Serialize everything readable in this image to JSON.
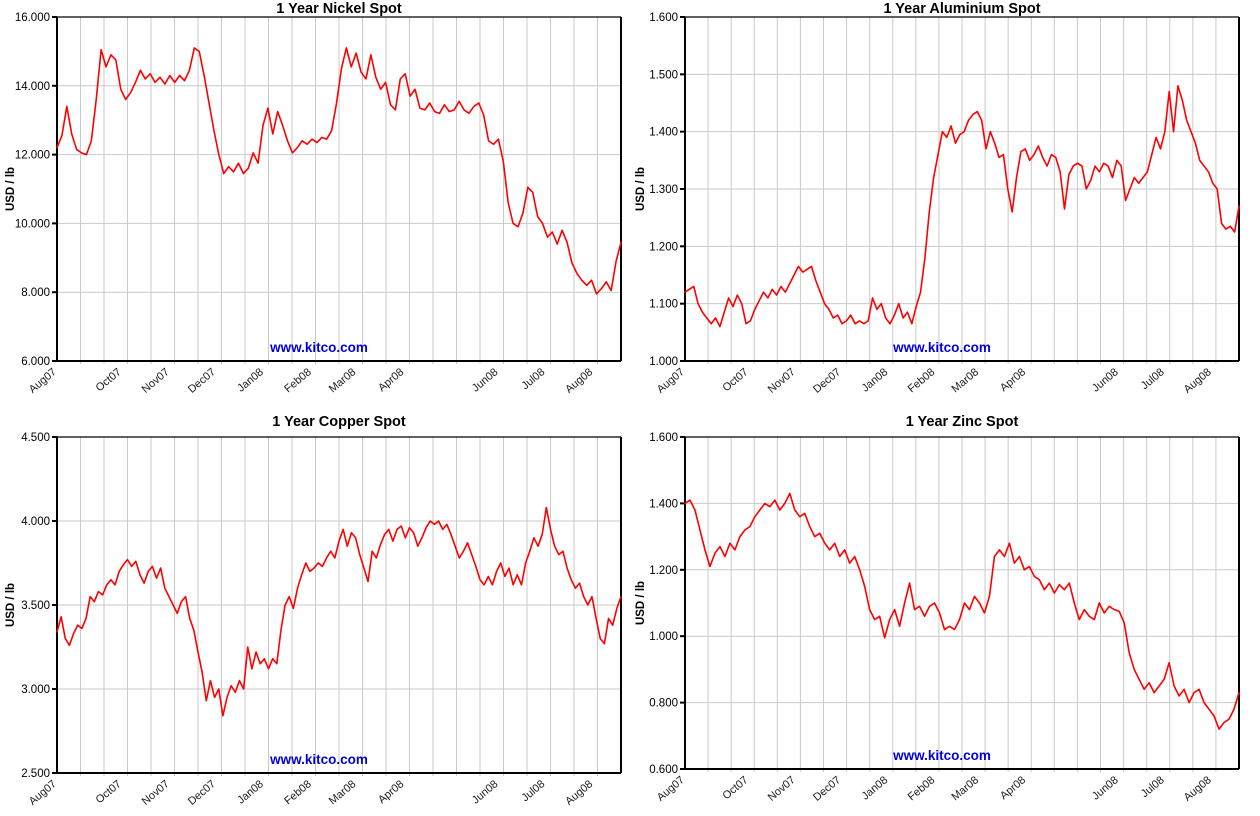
{
  "page": {
    "background": "#ffffff"
  },
  "watermark": {
    "text": "www.kitco.com",
    "color": "#0000dd"
  },
  "chart_data": [
    {
      "id": "nickel",
      "type": "line",
      "title": "1 Year Nickel Spot",
      "ylabel": "USD / lb",
      "grid": true,
      "legend_position": "none",
      "line_color": "#ff0000",
      "ylim": [
        6,
        16
      ],
      "y_tick_labels": [
        "16.000",
        "14.000",
        "12.000",
        "10.000",
        "8.000",
        "6.000"
      ],
      "x_tick_labels": [
        "Aug07",
        "Oct07",
        "Nov07",
        "Dec07",
        "Jan08",
        "Feb08",
        "Mar08",
        "Apr08",
        "Jun08",
        "Jul08",
        "Aug08"
      ],
      "x_tick_positions": [
        0.0,
        0.115,
        0.2,
        0.282,
        0.367,
        0.452,
        0.531,
        0.616,
        0.783,
        0.866,
        0.951
      ],
      "x_range_note": "Aug 2007 to Aug 2008",
      "watermark": "www.kitco.com",
      "series": [
        {
          "name": "Nickel spot price (USD/lb)",
          "values": [
            12.2,
            12.55,
            13.4,
            12.6,
            12.15,
            12.05,
            12.0,
            12.4,
            13.6,
            15.05,
            14.55,
            14.9,
            14.75,
            13.9,
            13.6,
            13.8,
            14.1,
            14.45,
            14.2,
            14.35,
            14.1,
            14.25,
            14.05,
            14.3,
            14.1,
            14.3,
            14.15,
            14.45,
            15.1,
            15.0,
            14.3,
            13.5,
            12.7,
            12.0,
            11.45,
            11.65,
            11.5,
            11.75,
            11.45,
            11.6,
            12.05,
            11.75,
            12.85,
            13.35,
            12.6,
            13.25,
            12.85,
            12.4,
            12.05,
            12.2,
            12.4,
            12.3,
            12.45,
            12.35,
            12.5,
            12.45,
            12.7,
            13.5,
            14.5,
            15.1,
            14.55,
            14.95,
            14.4,
            14.2,
            14.9,
            14.25,
            13.9,
            14.1,
            13.45,
            13.3,
            14.2,
            14.35,
            13.7,
            13.9,
            13.35,
            13.3,
            13.5,
            13.25,
            13.2,
            13.45,
            13.25,
            13.3,
            13.55,
            13.3,
            13.2,
            13.4,
            13.5,
            13.15,
            12.4,
            12.3,
            12.45,
            11.8,
            10.6,
            10.0,
            9.9,
            10.3,
            11.05,
            10.9,
            10.2,
            10.0,
            9.6,
            9.75,
            9.4,
            9.8,
            9.45,
            8.85,
            8.55,
            8.35,
            8.2,
            8.35,
            7.95,
            8.1,
            8.3,
            8.05,
            8.9,
            9.45
          ]
        }
      ]
    },
    {
      "id": "aluminium",
      "type": "line",
      "title": "1 Year Aluminium Spot",
      "ylabel": "USD / lb",
      "grid": true,
      "legend_position": "none",
      "line_color": "#ff0000",
      "ylim": [
        1.0,
        1.6
      ],
      "y_tick_labels": [
        "1.600",
        "1.500",
        "1.400",
        "1.300",
        "1.200",
        "1.100",
        "1.000"
      ],
      "x_tick_labels": [
        "Aug07",
        "Oct07",
        "Nov07",
        "Dec07",
        "Jan08",
        "Feb08",
        "Mar08",
        "Apr08",
        "Jun08",
        "Jul08",
        "Aug08"
      ],
      "x_tick_positions": [
        0.0,
        0.115,
        0.2,
        0.282,
        0.367,
        0.452,
        0.531,
        0.616,
        0.783,
        0.866,
        0.951
      ],
      "x_range_note": "Aug 2007 to Aug 2008",
      "watermark": "www.kitco.com",
      "series": [
        {
          "name": "Aluminium spot price (USD/lb)",
          "values": [
            1.12,
            1.125,
            1.13,
            1.1,
            1.085,
            1.075,
            1.065,
            1.075,
            1.06,
            1.085,
            1.11,
            1.095,
            1.115,
            1.1,
            1.065,
            1.07,
            1.09,
            1.105,
            1.12,
            1.11,
            1.125,
            1.115,
            1.13,
            1.12,
            1.135,
            1.15,
            1.165,
            1.155,
            1.16,
            1.165,
            1.14,
            1.12,
            1.1,
            1.09,
            1.075,
            1.08,
            1.065,
            1.07,
            1.08,
            1.065,
            1.07,
            1.065,
            1.07,
            1.11,
            1.09,
            1.1,
            1.075,
            1.065,
            1.08,
            1.1,
            1.075,
            1.085,
            1.065,
            1.095,
            1.12,
            1.18,
            1.26,
            1.32,
            1.36,
            1.4,
            1.39,
            1.41,
            1.38,
            1.395,
            1.4,
            1.42,
            1.43,
            1.435,
            1.42,
            1.37,
            1.4,
            1.38,
            1.355,
            1.36,
            1.3,
            1.26,
            1.32,
            1.365,
            1.37,
            1.35,
            1.36,
            1.375,
            1.355,
            1.34,
            1.36,
            1.355,
            1.33,
            1.265,
            1.325,
            1.34,
            1.345,
            1.34,
            1.3,
            1.315,
            1.34,
            1.33,
            1.345,
            1.34,
            1.32,
            1.35,
            1.34,
            1.28,
            1.3,
            1.32,
            1.31,
            1.32,
            1.33,
            1.36,
            1.39,
            1.37,
            1.4,
            1.47,
            1.4,
            1.48,
            1.455,
            1.42,
            1.4,
            1.38,
            1.35,
            1.34,
            1.33,
            1.31,
            1.3,
            1.24,
            1.23,
            1.235,
            1.225,
            1.27
          ]
        }
      ]
    },
    {
      "id": "copper",
      "type": "line",
      "title": "1 Year Copper Spot",
      "ylabel": "USD / lb",
      "grid": true,
      "legend_position": "none",
      "line_color": "#ff0000",
      "ylim": [
        2.5,
        4.5
      ],
      "y_tick_labels": [
        "4.500",
        "4.000",
        "3.500",
        "3.000",
        "2.500"
      ],
      "x_tick_labels": [
        "Aug07",
        "Oct07",
        "Nov07",
        "Dec07",
        "Jan08",
        "Feb08",
        "Mar08",
        "Apr08",
        "Jun08",
        "Jul08",
        "Aug08"
      ],
      "x_tick_positions": [
        0.0,
        0.115,
        0.2,
        0.282,
        0.367,
        0.452,
        0.531,
        0.616,
        0.783,
        0.866,
        0.951
      ],
      "x_range_note": "Aug 2007 to Aug 2008",
      "watermark": "www.kitco.com",
      "series": [
        {
          "name": "Copper spot price (USD/lb)",
          "values": [
            3.34,
            3.43,
            3.3,
            3.26,
            3.33,
            3.38,
            3.36,
            3.42,
            3.55,
            3.52,
            3.58,
            3.56,
            3.62,
            3.65,
            3.62,
            3.7,
            3.74,
            3.77,
            3.73,
            3.76,
            3.68,
            3.63,
            3.7,
            3.73,
            3.66,
            3.72,
            3.6,
            3.55,
            3.5,
            3.45,
            3.52,
            3.55,
            3.42,
            3.35,
            3.22,
            3.1,
            2.93,
            3.05,
            2.95,
            3.0,
            2.84,
            2.95,
            3.02,
            2.98,
            3.05,
            3.0,
            3.25,
            3.12,
            3.22,
            3.15,
            3.18,
            3.12,
            3.18,
            3.15,
            3.35,
            3.5,
            3.55,
            3.48,
            3.6,
            3.68,
            3.75,
            3.7,
            3.72,
            3.75,
            3.73,
            3.78,
            3.82,
            3.78,
            3.88,
            3.95,
            3.85,
            3.93,
            3.9,
            3.8,
            3.72,
            3.64,
            3.82,
            3.78,
            3.86,
            3.92,
            3.95,
            3.88,
            3.95,
            3.97,
            3.9,
            3.96,
            3.93,
            3.85,
            3.9,
            3.96,
            4.0,
            3.98,
            4.0,
            3.95,
            3.98,
            3.92,
            3.85,
            3.78,
            3.82,
            3.87,
            3.8,
            3.73,
            3.65,
            3.62,
            3.67,
            3.62,
            3.7,
            3.75,
            3.67,
            3.72,
            3.62,
            3.68,
            3.62,
            3.75,
            3.82,
            3.9,
            3.85,
            3.92,
            4.08,
            3.95,
            3.85,
            3.8,
            3.82,
            3.72,
            3.65,
            3.6,
            3.63,
            3.55,
            3.5,
            3.55,
            3.42,
            3.3,
            3.27,
            3.42,
            3.38,
            3.48,
            3.55
          ]
        }
      ]
    },
    {
      "id": "zinc",
      "type": "line",
      "title": "1 Year Zinc Spot",
      "ylabel": "USD / lb",
      "grid": true,
      "legend_position": "none",
      "line_color": "#ff0000",
      "ylim": [
        0.6,
        1.6
      ],
      "y_tick_labels": [
        "1.600",
        "1.400",
        "1.200",
        "1.000",
        "0.800",
        "0.600"
      ],
      "x_tick_labels": [
        "Aug07",
        "Oct07",
        "Nov07",
        "Dec07",
        "Jan08",
        "Feb08",
        "Mar08",
        "Apr08",
        "Jun08",
        "Jul08",
        "Aug08"
      ],
      "x_tick_positions": [
        0.0,
        0.115,
        0.2,
        0.282,
        0.367,
        0.452,
        0.531,
        0.616,
        0.783,
        0.866,
        0.951
      ],
      "x_range_note": "Aug 2007 to Aug 2008",
      "watermark": "www.kitco.com",
      "series": [
        {
          "name": "Zinc spot price (USD/lb)",
          "values": [
            1.4,
            1.41,
            1.38,
            1.32,
            1.26,
            1.21,
            1.25,
            1.27,
            1.24,
            1.28,
            1.26,
            1.3,
            1.32,
            1.33,
            1.36,
            1.38,
            1.4,
            1.39,
            1.41,
            1.38,
            1.4,
            1.43,
            1.38,
            1.36,
            1.37,
            1.33,
            1.3,
            1.31,
            1.28,
            1.26,
            1.28,
            1.24,
            1.26,
            1.22,
            1.24,
            1.2,
            1.15,
            1.08,
            1.05,
            1.06,
            0.995,
            1.05,
            1.08,
            1.03,
            1.1,
            1.16,
            1.08,
            1.09,
            1.06,
            1.09,
            1.1,
            1.07,
            1.02,
            1.03,
            1.02,
            1.05,
            1.1,
            1.08,
            1.12,
            1.1,
            1.07,
            1.12,
            1.24,
            1.26,
            1.24,
            1.28,
            1.22,
            1.24,
            1.2,
            1.21,
            1.18,
            1.17,
            1.14,
            1.16,
            1.13,
            1.155,
            1.14,
            1.16,
            1.1,
            1.05,
            1.08,
            1.06,
            1.05,
            1.1,
            1.07,
            1.09,
            1.08,
            1.075,
            1.04,
            0.95,
            0.9,
            0.87,
            0.84,
            0.86,
            0.83,
            0.85,
            0.87,
            0.92,
            0.85,
            0.82,
            0.84,
            0.8,
            0.83,
            0.84,
            0.8,
            0.78,
            0.76,
            0.72,
            0.74,
            0.75,
            0.78,
            0.83
          ]
        }
      ]
    }
  ]
}
